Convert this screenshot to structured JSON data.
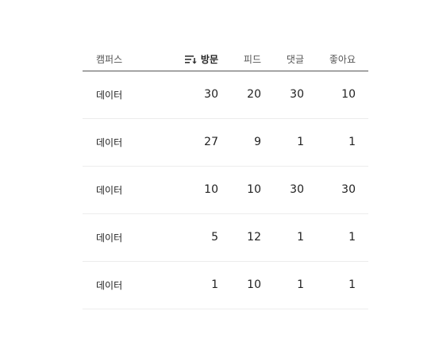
{
  "table": {
    "headers": {
      "campus": "캠퍼스",
      "visits": "방문",
      "feed": "피드",
      "comments": "댓글",
      "likes": "좋아요"
    },
    "sort_icon": "sort-descending-icon",
    "rows": [
      {
        "campus": "데이터",
        "visits": "30",
        "feed": "20",
        "comments": "30",
        "likes": "10"
      },
      {
        "campus": "데이터",
        "visits": "27",
        "feed": "9",
        "comments": "1",
        "likes": "1"
      },
      {
        "campus": "데이터",
        "visits": "10",
        "feed": "10",
        "comments": "30",
        "likes": "30"
      },
      {
        "campus": "데이터",
        "visits": "5",
        "feed": "12",
        "comments": "1",
        "likes": "1"
      },
      {
        "campus": "데이터",
        "visits": "1",
        "feed": "10",
        "comments": "1",
        "likes": "1"
      }
    ]
  }
}
